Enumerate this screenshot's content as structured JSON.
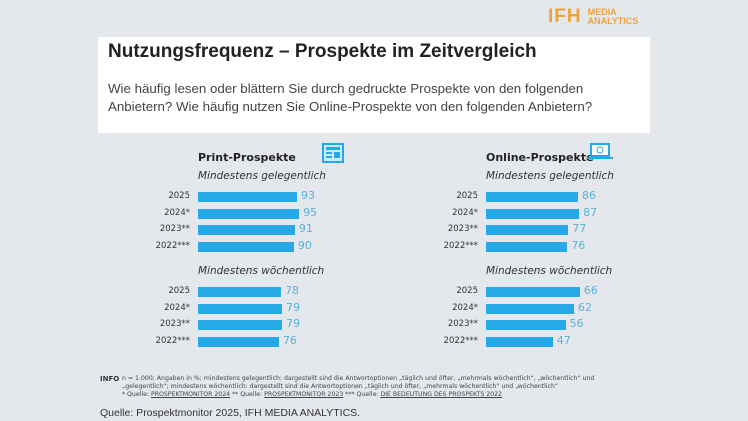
{
  "logo": {
    "big": "IFH",
    "line1": "MEDIA",
    "line2": "ANALYTICS"
  },
  "header": {
    "title": "Nutzungsfrequenz – Prospekte im Zeitvergleich",
    "subtitle": "Wie häufig lesen oder blättern Sie durch gedruckte Prospekte von den folgenden Anbietern? Wie häufig nutzen Sie Online-Prospekte von den folgenden Anbietern?"
  },
  "colors": {
    "bar": "#26a9e6",
    "value": "#5ab2dd",
    "logo": "#f0a23a"
  },
  "chart_data": [
    {
      "type": "bar",
      "title": "Print-Prospekte",
      "icon": "newspaper-icon",
      "groups": [
        {
          "name": "Mindestens gelegentlich",
          "categories": [
            "2025",
            "2024*",
            "2023**",
            "2022***"
          ],
          "values": [
            93,
            95,
            91,
            90
          ]
        },
        {
          "name": "Mindestens wöchentlich",
          "categories": [
            "2025",
            "2024*",
            "2023**",
            "2022***"
          ],
          "values": [
            78,
            79,
            79,
            76
          ]
        }
      ]
    },
    {
      "type": "bar",
      "title": "Online-Prospekte",
      "icon": "laptop-icon",
      "groups": [
        {
          "name": "Mindestens gelegentlich",
          "categories": [
            "2025",
            "2024*",
            "2023**",
            "2022***"
          ],
          "values": [
            86,
            87,
            77,
            76
          ]
        },
        {
          "name": "Mindestens wöchentlich",
          "categories": [
            "2025",
            "2024*",
            "2023**",
            "2022***"
          ],
          "values": [
            66,
            62,
            56,
            47
          ]
        }
      ]
    }
  ],
  "footer": {
    "info_label": "INFO",
    "note_line1": "n = 1.000; Angaben in %; mindestens gelegentlich: dargestellt sind die Antwortoptionen „täglich und öfter, „mehrmals wöchentlich“, „wöchentlich“ und",
    "note_line2": "„gelegentlich“; mindestens wöchentlich: dargestellt sind die Antwortoptionen „täglich und öfter, „mehrmals wöchentlich“ und „wöchentlich“",
    "q1": "* Quelle: ",
    "l1": "PROSPEKTMONITOR 2024",
    "q2": " ** Quelle: ",
    "l2": "PROSPEKTMONITOR 2023",
    "q3": " *** Quelle: ",
    "l3": "DIE BEDEUTUNG DES PROSPEKTS 2022",
    "source": "Quelle: Prospektmonitor 2025, IFH MEDIA ANALYTICS."
  }
}
